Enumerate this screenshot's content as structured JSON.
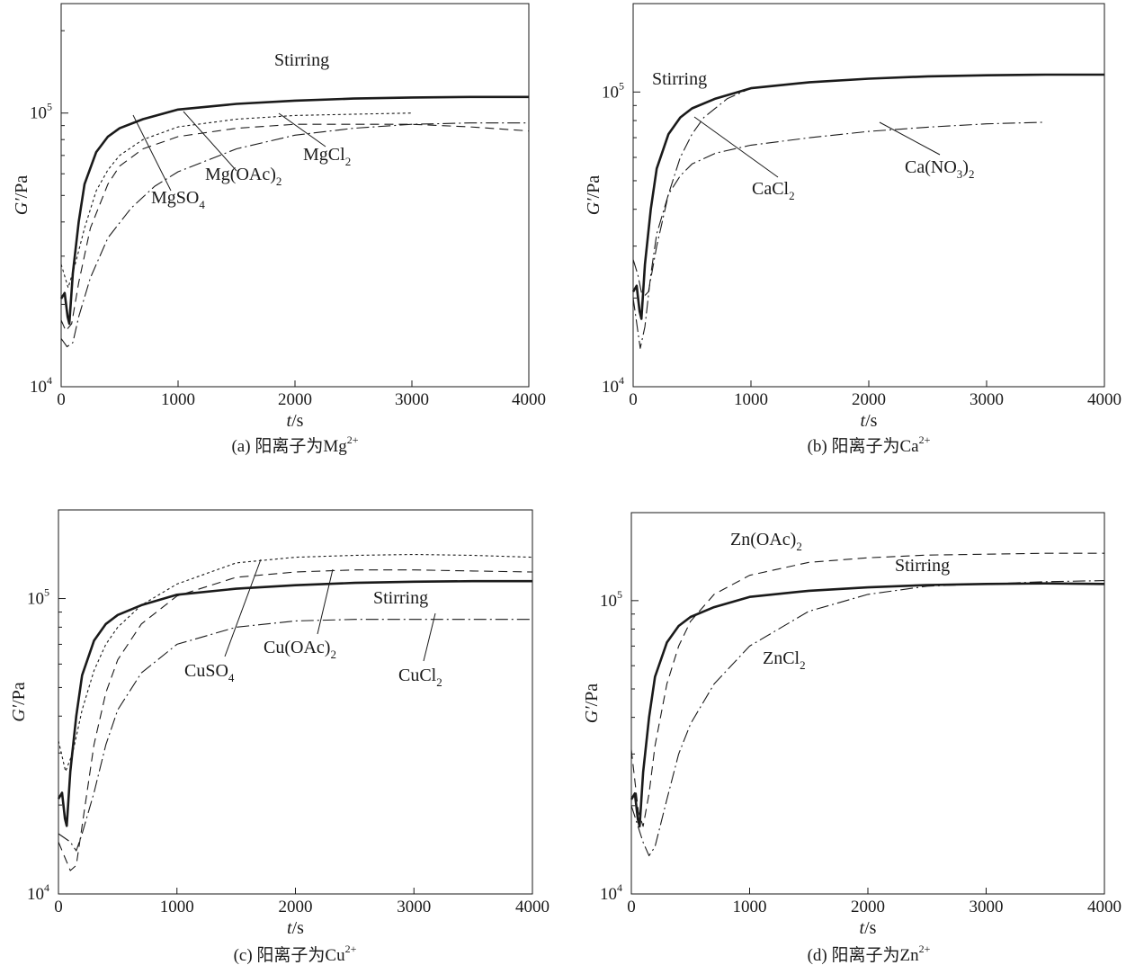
{
  "colors": {
    "ink": "#1a1a1a",
    "background": "#ffffff"
  },
  "chart_data": [
    {
      "id": "a",
      "type": "line",
      "caption": {
        "prefix": "(a) 阳离子为Mg",
        "sup": "2+"
      },
      "xlabel": {
        "var": "t",
        "unit": "/s"
      },
      "ylabel": {
        "var": "G′",
        "unit": "/Pa"
      },
      "xlim": [
        0,
        4000
      ],
      "ylim_log10": [
        4,
        5.4
      ],
      "xticks": [
        0,
        1000,
        2000,
        3000,
        4000
      ],
      "xtick_labels": [
        "0",
        "1000",
        "2000",
        "3000",
        "4000"
      ],
      "yticks": [
        {
          "base": "10",
          "exp": "4",
          "value": 10000
        },
        {
          "base": "10",
          "exp": "5",
          "value": 100000
        }
      ],
      "series": [
        {
          "name": "Stirring",
          "style": "thick",
          "x": [
            0,
            30,
            55,
            70,
            100,
            150,
            200,
            300,
            400,
            500,
            700,
            1000,
            1500,
            2000,
            2500,
            3000,
            3500,
            4000
          ],
          "y": [
            21000,
            22000,
            18000,
            17000,
            26000,
            40000,
            55000,
            72000,
            82000,
            88000,
            95000,
            103000,
            108000,
            111000,
            113000,
            114000,
            114500,
            114500
          ]
        },
        {
          "name": "MgSO4",
          "style": "dotted",
          "x": [
            0,
            60,
            120,
            200,
            300,
            400,
            500,
            700,
            1000,
            1500,
            2000,
            2500,
            3000
          ],
          "y": [
            28000,
            23000,
            28000,
            38000,
            52000,
            62000,
            70000,
            80000,
            89000,
            95000,
            98000,
            99000,
            100000
          ]
        },
        {
          "name": "Mg(OAc)2",
          "style": "dashed",
          "x": [
            0,
            40,
            90,
            150,
            250,
            400,
            500,
            700,
            1000,
            1500,
            2000,
            3000,
            3500,
            4000
          ],
          "y": [
            17500,
            16000,
            17000,
            24000,
            38000,
            55000,
            64000,
            74000,
            82000,
            88000,
            91000,
            91000,
            89000,
            86000
          ]
        },
        {
          "name": "MgCl2",
          "style": "dashdot",
          "x": [
            0,
            50,
            100,
            150,
            250,
            400,
            600,
            800,
            1000,
            1500,
            2000,
            2500,
            3000,
            3500,
            4000
          ],
          "y": [
            15000,
            14000,
            14500,
            18000,
            25000,
            35000,
            45000,
            54000,
            61000,
            74000,
            83000,
            88000,
            91000,
            92000,
            92000
          ]
        }
      ],
      "annotations": [
        {
          "base": "Stirring",
          "sub": ""
        },
        {
          "base": "MgCl",
          "sub": "2"
        },
        {
          "base": "Mg(OAc)",
          "sub": "2"
        },
        {
          "base": "MgSO",
          "sub": "4"
        }
      ]
    },
    {
      "id": "b",
      "type": "line",
      "caption": {
        "prefix": "(b) 阳离子为Ca",
        "sup": "2+"
      },
      "xlabel": {
        "var": "t",
        "unit": "/s"
      },
      "ylabel": {
        "var": "G′",
        "unit": "/Pa"
      },
      "xlim": [
        0,
        4000
      ],
      "ylim_log10": [
        4,
        5.3
      ],
      "xticks": [
        0,
        1000,
        2000,
        3000,
        4000
      ],
      "xtick_labels": [
        "0",
        "1000",
        "2000",
        "3000",
        "4000"
      ],
      "yticks": [
        {
          "base": "10",
          "exp": "4",
          "value": 10000
        },
        {
          "base": "10",
          "exp": "5",
          "value": 100000
        }
      ],
      "series": [
        {
          "name": "Stirring",
          "style": "thick",
          "x": [
            0,
            30,
            55,
            70,
            100,
            150,
            200,
            300,
            400,
            500,
            700,
            1000,
            1500,
            2000,
            2500,
            3000,
            3500,
            4000
          ],
          "y": [
            21000,
            22000,
            18000,
            17000,
            26000,
            40000,
            55000,
            72000,
            82000,
            88000,
            95000,
            103000,
            108000,
            111000,
            113000,
            114000,
            114500,
            114500
          ]
        },
        {
          "name": "CaCl2",
          "style": "dashdot",
          "x": [
            0,
            40,
            80,
            130,
            200,
            300,
            400,
            500,
            600,
            800,
            1000,
            1500,
            2000,
            2500,
            3000,
            4000
          ],
          "y": [
            27000,
            24000,
            20000,
            21000,
            30000,
            45000,
            60000,
            72000,
            82000,
            95000,
            103000,
            108000,
            111000,
            113000,
            114000,
            114500
          ]
        },
        {
          "name": "Ca(NO3)2",
          "style": "dashdot",
          "x": [
            0,
            60,
            100,
            150,
            200,
            300,
            400,
            500,
            700,
            1000,
            1500,
            2000,
            2500,
            3000,
            3500
          ],
          "y": [
            20000,
            13500,
            16000,
            24000,
            33000,
            45000,
            52000,
            57000,
            62000,
            66000,
            70000,
            73500,
            76000,
            78000,
            79000
          ]
        }
      ],
      "annotations": [
        {
          "base": "Stirring",
          "sub": ""
        },
        {
          "base": "CaCl",
          "sub": "2"
        },
        {
          "base": "Ca(NO",
          "sub": "3",
          "tail": ")",
          "tail_sub": "2"
        }
      ]
    },
    {
      "id": "c",
      "type": "line",
      "caption": {
        "prefix": "(c) 阳离子为Cu",
        "sup": "2+"
      },
      "xlabel": {
        "var": "t",
        "unit": "/s"
      },
      "ylabel": {
        "var": "G′",
        "unit": "/Pa"
      },
      "xlim": [
        0,
        4000
      ],
      "ylim_log10": [
        4,
        5.3
      ],
      "xticks": [
        0,
        1000,
        2000,
        3000,
        4000
      ],
      "xtick_labels": [
        "0",
        "1000",
        "2000",
        "3000",
        "4000"
      ],
      "yticks": [
        {
          "base": "10",
          "exp": "4",
          "value": 10000
        },
        {
          "base": "10",
          "exp": "5",
          "value": 100000
        }
      ],
      "series": [
        {
          "name": "Stirring",
          "style": "thick",
          "x": [
            0,
            30,
            55,
            70,
            100,
            150,
            200,
            300,
            400,
            500,
            700,
            1000,
            1500,
            2000,
            2500,
            3000,
            3500,
            4000
          ],
          "y": [
            21000,
            22000,
            18000,
            17000,
            26000,
            40000,
            55000,
            72000,
            82000,
            88000,
            95000,
            103000,
            108000,
            111000,
            113000,
            114000,
            114500,
            114500
          ]
        },
        {
          "name": "CuSO4",
          "style": "dotted",
          "x": [
            0,
            60,
            120,
            200,
            300,
            400,
            500,
            700,
            1000,
            1500,
            2000,
            2500,
            3000,
            3500,
            4000
          ],
          "y": [
            33000,
            26000,
            30000,
            42000,
            57000,
            70000,
            80000,
            95000,
            112000,
            132000,
            138000,
            140000,
            141000,
            140000,
            138000
          ]
        },
        {
          "name": "Cu(OAc)2",
          "style": "dashed",
          "x": [
            0,
            100,
            150,
            200,
            300,
            400,
            500,
            700,
            1000,
            1500,
            2000,
            2500,
            3000,
            3500,
            4000
          ],
          "y": [
            15000,
            12000,
            12500,
            17000,
            32000,
            48000,
            62000,
            82000,
            102000,
            118000,
            123000,
            125000,
            125000,
            124000,
            123000
          ]
        },
        {
          "name": "CuCl2",
          "style": "dashdot",
          "x": [
            0,
            100,
            150,
            200,
            300,
            400,
            500,
            700,
            1000,
            1500,
            2000,
            2500,
            3000,
            3500,
            4000
          ],
          "y": [
            16000,
            15000,
            14000,
            16000,
            22000,
            32000,
            42000,
            56000,
            70000,
            80000,
            84000,
            85000,
            85000,
            85000,
            85000
          ]
        }
      ],
      "annotations": [
        {
          "base": "Stirring",
          "sub": ""
        },
        {
          "base": "CuSO",
          "sub": "4"
        },
        {
          "base": "Cu(OAc)",
          "sub": "2"
        },
        {
          "base": "CuCl",
          "sub": "2"
        }
      ]
    },
    {
      "id": "d",
      "type": "line",
      "caption": {
        "prefix": "(d) 阳离子为Zn",
        "sup": "2+"
      },
      "xlabel": {
        "var": "t",
        "unit": "/s"
      },
      "ylabel": {
        "var": "G′",
        "unit": "/Pa"
      },
      "xlim": [
        0,
        4000
      ],
      "ylim_log10": [
        4,
        5.3
      ],
      "xticks": [
        0,
        1000,
        2000,
        3000,
        4000
      ],
      "xtick_labels": [
        "0",
        "1000",
        "2000",
        "3000",
        "4000"
      ],
      "yticks": [
        {
          "base": "10",
          "exp": "4",
          "value": 10000
        },
        {
          "base": "10",
          "exp": "5",
          "value": 100000
        }
      ],
      "series": [
        {
          "name": "Stirring",
          "style": "thick",
          "x": [
            0,
            30,
            55,
            70,
            100,
            150,
            200,
            300,
            400,
            500,
            700,
            1000,
            1500,
            2000,
            2500,
            3000,
            3500,
            4000
          ],
          "y": [
            21000,
            22000,
            18000,
            17000,
            26000,
            40000,
            55000,
            72000,
            82000,
            88000,
            95000,
            103000,
            108000,
            111000,
            113000,
            114000,
            114500,
            114000
          ]
        },
        {
          "name": "Zn(OAc)2",
          "style": "dashed",
          "x": [
            0,
            60,
            100,
            150,
            200,
            300,
            400,
            500,
            700,
            1000,
            1500,
            2000,
            2500,
            3000,
            3500,
            4000
          ],
          "y": [
            31000,
            19000,
            17000,
            22000,
            32000,
            52000,
            70000,
            85000,
            105000,
            122000,
            135000,
            140000,
            143000,
            144000,
            145000,
            145000
          ]
        },
        {
          "name": "ZnCl2",
          "style": "dashdot",
          "x": [
            0,
            100,
            150,
            200,
            300,
            400,
            500,
            700,
            1000,
            1500,
            2000,
            2500,
            3000,
            3500,
            4000
          ],
          "y": [
            20000,
            15000,
            13500,
            14500,
            21000,
            30000,
            38000,
            52000,
            70000,
            92000,
            105000,
            112000,
            114000,
            116000,
            117000
          ]
        }
      ],
      "annotations": [
        {
          "base": "Zn(OAc)",
          "sub": "2"
        },
        {
          "base": "Stirring",
          "sub": ""
        },
        {
          "base": "ZnCl",
          "sub": "2"
        }
      ]
    }
  ]
}
